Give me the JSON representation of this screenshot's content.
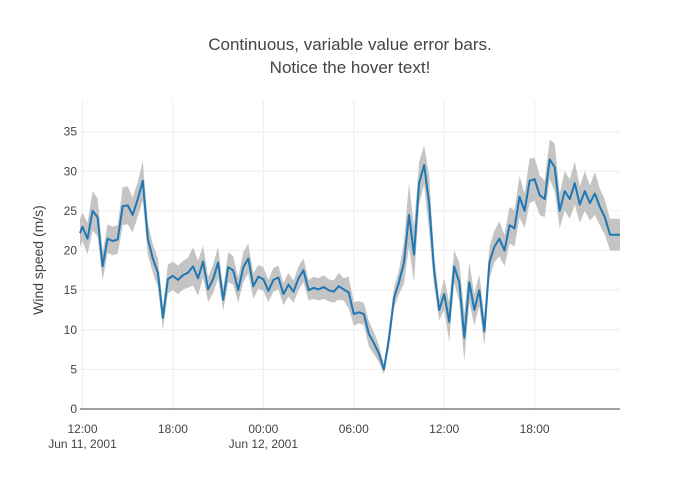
{
  "chart_data": {
    "type": "line",
    "title_lines": [
      "Continuous, variable value error bars.",
      "Notice the hover text!"
    ],
    "xlabel": "",
    "ylabel": "Wind speed (m/s)",
    "xlim": [
      "2001-06-11 11:50",
      "2001-06-12 23:40"
    ],
    "ylim": [
      0,
      39
    ],
    "yticks": [
      0,
      5,
      10,
      15,
      20,
      25,
      30,
      35
    ],
    "xticks": [
      {
        "value": "2001-06-11 12:00",
        "label": "12:00",
        "sublabel": "Jun 11, 2001"
      },
      {
        "value": "2001-06-11 18:00",
        "label": "18:00",
        "sublabel": ""
      },
      {
        "value": "2001-06-12 00:00",
        "label": "00:00",
        "sublabel": "Jun 12, 2001"
      },
      {
        "value": "2001-06-12 06:00",
        "label": "06:00",
        "sublabel": ""
      },
      {
        "value": "2001-06-12 12:00",
        "label": "12:00",
        "sublabel": ""
      },
      {
        "value": "2001-06-12 18:00",
        "label": "18:00",
        "sublabel": ""
      }
    ],
    "grid": true,
    "legend": "none",
    "line_color": "#1f77b4",
    "band_color": "#c4c4c4",
    "series": [
      {
        "x": [
          "2001-06-11 11:50",
          "2001-06-11 12:00",
          "2001-06-11 12:20",
          "2001-06-11 12:40",
          "2001-06-11 13:00",
          "2001-06-11 13:20",
          "2001-06-11 13:40",
          "2001-06-11 14:00",
          "2001-06-11 14:20",
          "2001-06-11 14:40",
          "2001-06-11 15:00",
          "2001-06-11 15:20",
          "2001-06-11 15:40",
          "2001-06-11 16:00",
          "2001-06-11 16:20",
          "2001-06-11 16:40",
          "2001-06-11 17:00",
          "2001-06-11 17:20",
          "2001-06-11 17:40",
          "2001-06-11 18:00",
          "2001-06-11 18:20",
          "2001-06-11 18:40",
          "2001-06-11 19:00",
          "2001-06-11 19:20",
          "2001-06-11 19:40",
          "2001-06-11 20:00",
          "2001-06-11 20:20",
          "2001-06-11 20:40",
          "2001-06-11 21:00",
          "2001-06-11 21:20",
          "2001-06-11 21:40",
          "2001-06-11 22:00",
          "2001-06-11 22:20",
          "2001-06-11 22:40",
          "2001-06-11 23:00",
          "2001-06-11 23:20",
          "2001-06-11 23:40",
          "2001-06-12 00:00",
          "2001-06-12 00:20",
          "2001-06-12 00:40",
          "2001-06-12 01:00",
          "2001-06-12 01:20",
          "2001-06-12 01:40",
          "2001-06-12 02:00",
          "2001-06-12 02:20",
          "2001-06-12 02:40",
          "2001-06-12 03:00",
          "2001-06-12 03:20",
          "2001-06-12 03:40",
          "2001-06-12 04:00",
          "2001-06-12 04:20",
          "2001-06-12 04:40",
          "2001-06-12 05:00",
          "2001-06-12 05:20",
          "2001-06-12 05:40",
          "2001-06-12 06:00",
          "2001-06-12 06:20",
          "2001-06-12 06:40",
          "2001-06-12 07:00",
          "2001-06-12 07:20",
          "2001-06-12 07:40",
          "2001-06-12 08:00",
          "2001-06-12 08:20",
          "2001-06-12 08:40",
          "2001-06-12 09:00",
          "2001-06-12 09:20",
          "2001-06-12 09:40",
          "2001-06-12 10:00",
          "2001-06-12 10:20",
          "2001-06-12 10:40",
          "2001-06-12 11:00",
          "2001-06-12 11:20",
          "2001-06-12 11:40",
          "2001-06-12 12:00",
          "2001-06-12 12:20",
          "2001-06-12 12:40",
          "2001-06-12 13:00",
          "2001-06-12 13:20",
          "2001-06-12 13:40",
          "2001-06-12 14:00",
          "2001-06-12 14:20",
          "2001-06-12 14:40",
          "2001-06-12 15:00",
          "2001-06-12 15:20",
          "2001-06-12 15:40",
          "2001-06-12 16:00",
          "2001-06-12 16:20",
          "2001-06-12 16:40",
          "2001-06-12 17:00",
          "2001-06-12 17:20",
          "2001-06-12 17:40",
          "2001-06-12 18:00",
          "2001-06-12 18:20",
          "2001-06-12 18:40",
          "2001-06-12 19:00",
          "2001-06-12 19:20",
          "2001-06-12 19:40",
          "2001-06-12 20:00",
          "2001-06-12 20:20",
          "2001-06-12 20:40",
          "2001-06-12 21:00",
          "2001-06-12 21:20",
          "2001-06-12 21:40",
          "2001-06-12 22:00",
          "2001-06-12 22:20",
          "2001-06-12 22:40",
          "2001-06-12 23:00",
          "2001-06-12 23:20",
          "2001-06-12 23:40"
        ],
        "y": [
          22.2,
          23.0,
          21.5,
          25.0,
          24.2,
          18.0,
          21.5,
          21.2,
          21.4,
          25.6,
          25.7,
          24.5,
          26.5,
          28.8,
          21.5,
          19.0,
          17.2,
          11.5,
          16.4,
          16.8,
          16.3,
          16.9,
          17.2,
          18.0,
          16.5,
          18.6,
          15.1,
          16.4,
          18.5,
          13.8,
          17.9,
          17.5,
          15.0,
          17.9,
          19.0,
          15.5,
          16.7,
          16.4,
          14.9,
          16.3,
          16.6,
          14.5,
          15.7,
          14.8,
          16.5,
          17.5,
          15.0,
          15.3,
          15.1,
          15.4,
          15.0,
          14.8,
          15.5,
          15.1,
          14.7,
          12.0,
          12.2,
          12.0,
          9.5,
          8.3,
          7.0,
          5.0,
          8.8,
          14.0,
          16.0,
          18.5,
          24.5,
          19.5,
          28.5,
          30.8,
          26.0,
          17.5,
          12.5,
          14.5,
          11.0,
          18.0,
          16.0,
          9.0,
          16.0,
          12.5,
          15.0,
          9.8,
          18.5,
          20.5,
          21.5,
          20.0,
          23.2,
          22.8,
          26.8,
          25.0,
          28.8,
          29.0,
          27.0,
          26.5,
          31.5,
          30.5,
          25.0,
          27.5,
          26.5,
          28.5,
          25.8,
          27.5,
          26.0,
          27.2,
          25.5,
          24.2,
          22.0,
          22.0,
          22.0
        ],
        "err_low": [
          20.4,
          21.2,
          19.5,
          22.5,
          21.8,
          16.2,
          19.7,
          19.4,
          19.6,
          23.2,
          23.3,
          22.3,
          24.3,
          26.3,
          19.5,
          17.2,
          15.4,
          10.0,
          14.6,
          15.0,
          14.5,
          15.1,
          15.3,
          15.6,
          14.3,
          16.6,
          13.5,
          14.6,
          16.5,
          12.4,
          16.0,
          15.7,
          13.4,
          16.0,
          17.1,
          13.9,
          15.2,
          14.9,
          13.5,
          14.8,
          15.1,
          13.1,
          14.2,
          13.4,
          15.0,
          16.0,
          13.7,
          13.9,
          13.7,
          13.9,
          13.6,
          13.4,
          13.8,
          13.7,
          12.7,
          10.5,
          10.8,
          10.6,
          7.9,
          6.9,
          5.9,
          4.4,
          7.6,
          12.7,
          14.5,
          15.8,
          20.5,
          16.0,
          25.8,
          28.3,
          22.5,
          15.5,
          11.2,
          12.5,
          8.5,
          16.0,
          13.5,
          6.0,
          13.5,
          10.5,
          13.0,
          8.0,
          16.5,
          18.5,
          19.3,
          18.0,
          20.9,
          20.5,
          24.2,
          22.8,
          26.0,
          26.3,
          24.5,
          24.2,
          29.0,
          27.5,
          22.8,
          25.0,
          24.0,
          25.8,
          23.5,
          25.0,
          23.8,
          24.5,
          23.2,
          22.0,
          20.0,
          20.0,
          20.0
        ],
        "err_high": [
          24.0,
          24.8,
          23.5,
          27.5,
          26.6,
          19.8,
          23.3,
          23.0,
          23.2,
          28.0,
          28.1,
          26.7,
          28.7,
          31.3,
          23.5,
          20.8,
          19.0,
          13.0,
          18.2,
          18.6,
          18.1,
          18.7,
          19.1,
          20.4,
          18.7,
          20.6,
          16.7,
          18.2,
          20.5,
          15.2,
          19.8,
          19.3,
          16.6,
          19.8,
          20.9,
          17.1,
          18.2,
          17.9,
          16.3,
          17.8,
          18.1,
          15.9,
          17.2,
          16.2,
          18.0,
          19.0,
          16.3,
          16.7,
          16.5,
          16.9,
          16.4,
          16.2,
          17.2,
          16.5,
          16.7,
          13.5,
          13.6,
          13.4,
          11.1,
          9.7,
          8.1,
          5.6,
          10.0,
          15.3,
          17.5,
          21.2,
          28.5,
          23.0,
          31.2,
          33.3,
          29.5,
          19.5,
          13.8,
          16.5,
          13.5,
          20.0,
          18.5,
          12.0,
          18.5,
          14.5,
          17.0,
          11.6,
          20.5,
          22.5,
          23.7,
          22.0,
          25.5,
          25.1,
          29.4,
          27.2,
          31.6,
          31.7,
          29.5,
          28.8,
          34.0,
          33.5,
          27.2,
          30.0,
          29.0,
          31.2,
          28.1,
          30.0,
          28.2,
          29.9,
          27.8,
          26.4,
          24.0,
          24.0,
          24.0
        ]
      }
    ]
  }
}
